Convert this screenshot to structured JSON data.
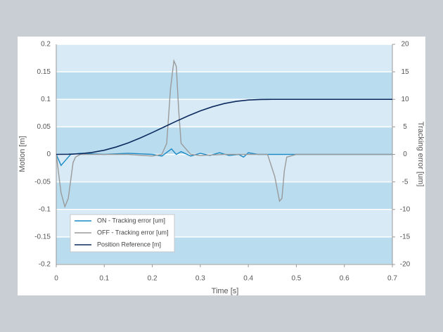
{
  "chart_data": {
    "type": "line",
    "xlabel": "Time [s]",
    "ylabel": "Motion [m]",
    "y2label": "Tracking error [um]",
    "xlim": [
      0,
      0.7
    ],
    "xticks": [
      0,
      0.1,
      0.2,
      0.3,
      0.4,
      0.5,
      0.6,
      0.7
    ],
    "ylim": [
      -0.2,
      0.2
    ],
    "yticks": [
      0.2,
      0.15,
      0.1,
      0.05,
      0,
      -0.05,
      -0.1,
      -0.15,
      -0.2
    ],
    "y2lim": [
      -20,
      20
    ],
    "y2ticks": [
      20,
      15,
      10,
      5,
      0,
      -5,
      -10,
      -15,
      -20
    ],
    "grid": true,
    "legend": "lower left",
    "series": [
      {
        "name": "ON - Tracking error [um]",
        "color": "#1a8ac6",
        "axis": "y2",
        "x": [
          0,
          0.01,
          0.02,
          0.03,
          0.05,
          0.1,
          0.15,
          0.2,
          0.22,
          0.24,
          0.25,
          0.26,
          0.28,
          0.3,
          0.32,
          0.34,
          0.36,
          0.38,
          0.39,
          0.4,
          0.42,
          0.5,
          0.7
        ],
        "values": [
          0,
          -2,
          -1,
          0,
          0.2,
          0,
          0.2,
          0,
          -0.3,
          1,
          0,
          0.5,
          -0.3,
          0.2,
          -0.2,
          0.3,
          -0.2,
          0,
          -0.5,
          0.3,
          0,
          0,
          0
        ]
      },
      {
        "name": "OFF - Tracking error [um]",
        "color": "#9a9a9a",
        "axis": "y2",
        "x": [
          0,
          0.01,
          0.018,
          0.025,
          0.035,
          0.04,
          0.05,
          0.1,
          0.15,
          0.2,
          0.22,
          0.23,
          0.238,
          0.245,
          0.25,
          0.255,
          0.26,
          0.27,
          0.28,
          0.3,
          0.35,
          0.4,
          0.44,
          0.455,
          0.465,
          0.47,
          0.475,
          0.48,
          0.5,
          0.7
        ],
        "values": [
          0,
          -7,
          -9.5,
          -8,
          -1.5,
          -0.5,
          0,
          0,
          0,
          -0.3,
          0,
          2,
          12,
          17,
          16,
          8,
          2,
          1,
          0,
          -0.2,
          0,
          0,
          0,
          -4,
          -8.5,
          -8,
          -3,
          -0.5,
          0,
          0
        ]
      },
      {
        "name": "Position Reference [m]",
        "color": "#0d2a5e",
        "x": [
          0,
          0.025,
          0.05,
          0.075,
          0.1,
          0.125,
          0.15,
          0.175,
          0.2,
          0.225,
          0.25,
          0.275,
          0.3,
          0.325,
          0.35,
          0.375,
          0.4,
          0.425,
          0.45,
          0.5,
          0.6,
          0.7
        ],
        "values": [
          0,
          0.0002,
          0.0012,
          0.0036,
          0.0076,
          0.0135,
          0.021,
          0.0299,
          0.0397,
          0.05,
          0.0603,
          0.0701,
          0.079,
          0.0865,
          0.0924,
          0.0964,
          0.0988,
          0.0998,
          0.1,
          0.1,
          0.1,
          0.1
        ]
      }
    ]
  }
}
